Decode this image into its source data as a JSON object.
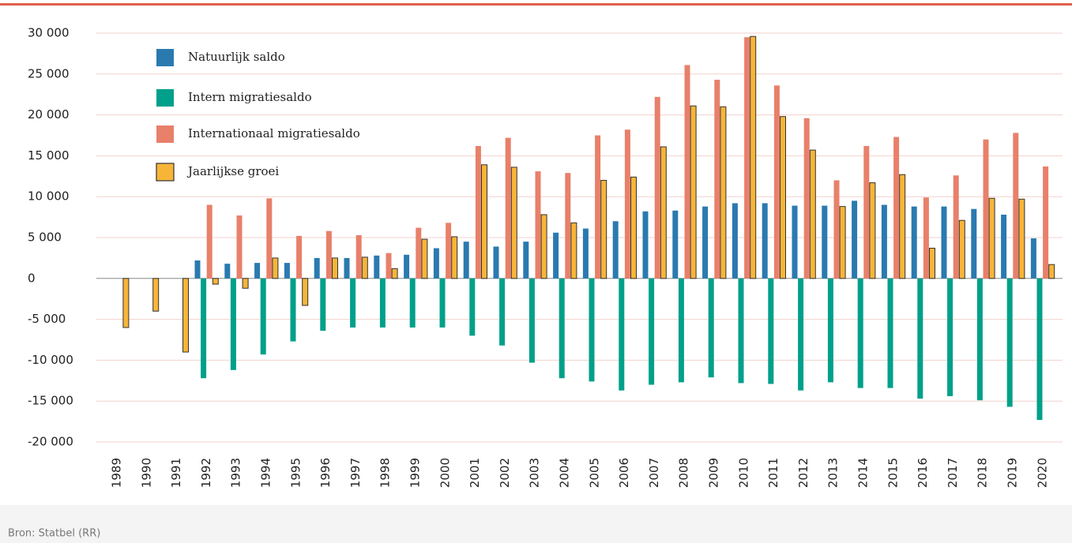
{
  "chart_data": {
    "type": "bar",
    "source": "Bron: Statbel (RR)",
    "categories": [
      "1989",
      "1990",
      "1991",
      "1992",
      "1993",
      "1994",
      "1995",
      "1996",
      "1997",
      "1998",
      "1999",
      "2000",
      "2001",
      "2002",
      "2003",
      "2004",
      "2005",
      "2006",
      "2007",
      "2008",
      "2009",
      "2010",
      "2011",
      "2012",
      "2013",
      "2014",
      "2015",
      "2016",
      "2017",
      "2018",
      "2019",
      "2020"
    ],
    "series": [
      {
        "name": "Natuurlijk saldo",
        "color": "#2a7ab0",
        "values": [
          null,
          null,
          null,
          2200,
          1800,
          1900,
          1900,
          2500,
          2500,
          2800,
          2900,
          3700,
          4500,
          3900,
          4500,
          5600,
          6100,
          7000,
          8200,
          8300,
          8800,
          9200,
          9200,
          8900,
          8900,
          9500,
          9000,
          8800,
          8800,
          8500,
          7800,
          4900
        ]
      },
      {
        "name": "Intern migratiesaldo",
        "color": "#00a08a",
        "values": [
          null,
          null,
          null,
          -12200,
          -11200,
          -9300,
          -7700,
          -6400,
          -6000,
          -6000,
          -6000,
          -6000,
          -7000,
          -8200,
          -10300,
          -12200,
          -12600,
          -13700,
          -13000,
          -12700,
          -12100,
          -12800,
          -12900,
          -13700,
          -12700,
          -13400,
          -13400,
          -14700,
          -14400,
          -14900,
          -15700,
          -17300
        ]
      },
      {
        "name": "Internationaal migratiesaldo",
        "color": "#e8806a",
        "values": [
          null,
          null,
          null,
          9000,
          7700,
          9800,
          5200,
          5800,
          5300,
          3100,
          6200,
          6800,
          16200,
          17200,
          13100,
          12900,
          17500,
          18200,
          22200,
          26100,
          24300,
          29500,
          23600,
          19600,
          12000,
          16200,
          17300,
          9900,
          12600,
          17000,
          17800,
          13700
        ]
      },
      {
        "name": "Jaarlijkse groei",
        "color": "#f7b538",
        "values": [
          -6000,
          -4000,
          -9000,
          -700,
          -1200,
          2500,
          -3300,
          2500,
          2600,
          1200,
          4800,
          5100,
          13900,
          13600,
          7800,
          6800,
          12000,
          12400,
          16100,
          21100,
          21000,
          29600,
          19800,
          15700,
          8800,
          11700,
          12700,
          3700,
          7100,
          9800,
          9700,
          1700
        ]
      }
    ],
    "ylim": [
      -20000,
      30000
    ],
    "yticks": [
      {
        "value": -20000,
        "label": "-20 000"
      },
      {
        "value": -15000,
        "label": "-15 000"
      },
      {
        "value": -10000,
        "label": "-10 000"
      },
      {
        "value": -5000,
        "label": "-5 000"
      },
      0,
      {
        "value": 5000,
        "label": "5 000"
      },
      {
        "value": 10000,
        "label": "10 000"
      },
      {
        "value": 15000,
        "label": "15 000"
      },
      {
        "value": 20000,
        "label": "20 000"
      },
      {
        "value": 25000,
        "label": "25 000"
      },
      {
        "value": 30000,
        "label": "30 000"
      }
    ],
    "grid": true
  }
}
